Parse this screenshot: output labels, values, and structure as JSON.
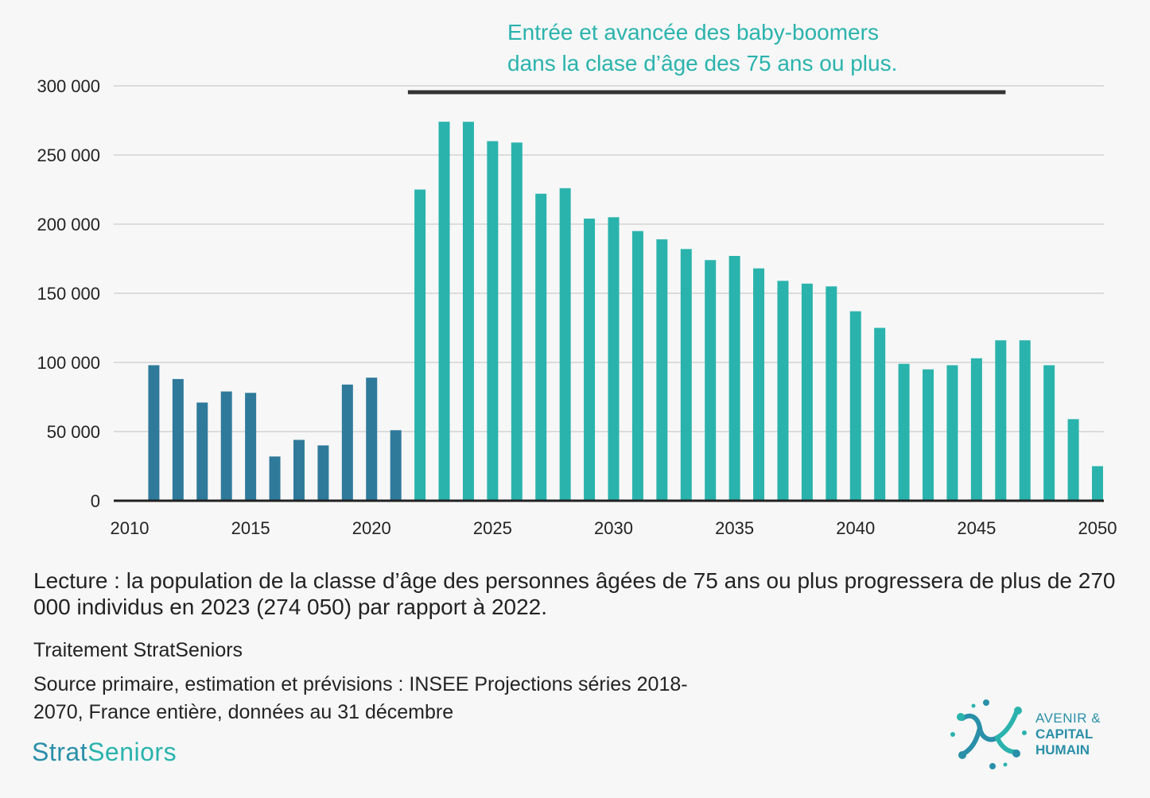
{
  "chart_data": {
    "type": "bar",
    "title": "",
    "xlabel": "",
    "ylabel": "",
    "ylim": [
      0,
      300000
    ],
    "yticks": [
      0,
      50000,
      100000,
      150000,
      200000,
      250000,
      300000
    ],
    "ytick_labels": [
      "0",
      "50 000",
      "100 000",
      "150 000",
      "200 000",
      "250 000",
      "300 000"
    ],
    "xticks": [
      2010,
      2015,
      2020,
      2025,
      2030,
      2035,
      2040,
      2045,
      2050
    ],
    "xtick_labels": [
      "2010",
      "2015",
      "2020",
      "2025",
      "2030",
      "2035",
      "2040",
      "2045",
      "2050"
    ],
    "colors": {
      "historical": "#2f7a9b",
      "projection": "#2ab3ad",
      "bracket": "#333333"
    },
    "series": [
      {
        "name": "historical",
        "years": [
          2011,
          2012,
          2013,
          2014,
          2015,
          2016,
          2017,
          2018,
          2019,
          2020,
          2021
        ],
        "values": [
          98000,
          88000,
          71000,
          79000,
          78000,
          32000,
          44000,
          40000,
          84000,
          89000,
          51000
        ]
      },
      {
        "name": "projection",
        "years": [
          2022,
          2023,
          2024,
          2025,
          2026,
          2027,
          2028,
          2029,
          2030,
          2031,
          2032,
          2033,
          2034,
          2035,
          2036,
          2037,
          2038,
          2039,
          2040,
          2041,
          2042,
          2043,
          2044,
          2045,
          2046,
          2047,
          2048,
          2049,
          2050
        ],
        "values": [
          225000,
          274050,
          274000,
          260000,
          259000,
          222000,
          226000,
          204000,
          205000,
          195000,
          189000,
          182000,
          174000,
          177000,
          168000,
          159000,
          157000,
          155000,
          137000,
          125000,
          99000,
          95000,
          98000,
          103000,
          116000,
          116000,
          98000,
          59000,
          25000
        ]
      }
    ],
    "annotation": {
      "line1": "Entrée et avancée des baby-boomers",
      "line2": "dans la clase d’âge des 75 ans ou plus.",
      "bracket_from": 2021.5,
      "bracket_to": 2046.2
    }
  },
  "caption": "Lecture : la population de la classe d’âge des personnes âgées de 75 ans ou plus progressera de plus de 270 000 individus en 2023 (274 050) par rapport à 2022.",
  "credits": {
    "treatment": "Traitement StratSeniors",
    "source": "Source primaire, estimation et prévisions : INSEE Projections séries 2018-2070, France entière, données au 31 décembre"
  },
  "brand": {
    "part1": "Strat",
    "part2": "Seniors"
  },
  "logo": {
    "line1": "AVENIR &",
    "line2": "CAPITAL",
    "line3": "HUMAIN"
  }
}
